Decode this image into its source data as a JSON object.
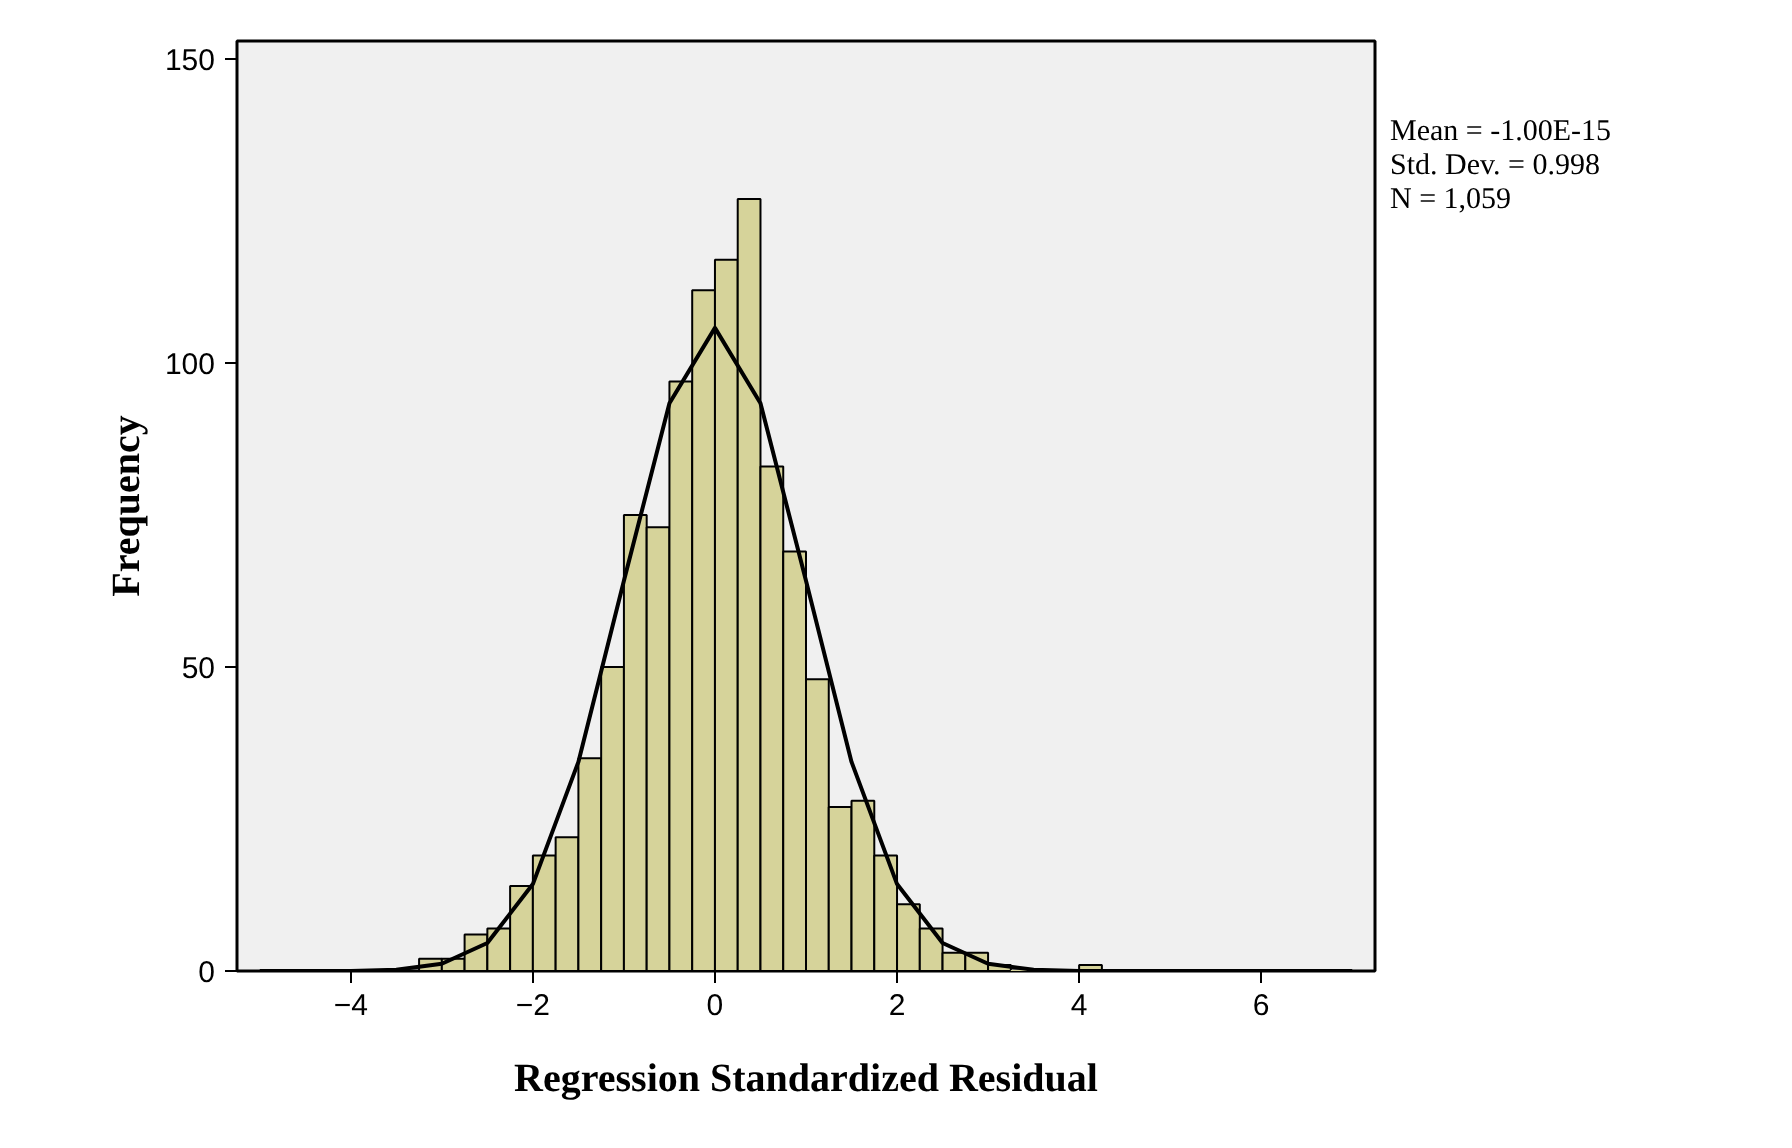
{
  "chart_data": {
    "type": "histogram",
    "xlabel": "Regression Standardized Residual",
    "ylabel": "Frequency",
    "annotations": [
      "Mean = -1.00E-15",
      "Std. Dev. = 0.998",
      "N = 1,059"
    ],
    "bins": [
      -3.25,
      -3.0,
      -2.75,
      -2.5,
      -2.25,
      -2.0,
      -1.75,
      -1.5,
      -1.25,
      -1.0,
      -0.75,
      -0.5,
      -0.25,
      0,
      0.25,
      0.5,
      0.75,
      1.0,
      1.25,
      1.5,
      1.75,
      2.0,
      2.25,
      2.5,
      2.75,
      3.0,
      3.25,
      3.5,
      3.75,
      4.0,
      4.25
    ],
    "values": [
      2,
      2,
      6,
      7,
      14,
      19,
      22,
      35,
      50,
      75,
      73,
      97,
      112,
      117,
      127,
      83,
      69,
      48,
      27,
      28,
      19,
      11,
      7,
      3,
      3,
      1,
      0,
      0,
      0,
      1
    ],
    "color": "#d6d39a",
    "series": [
      {
        "type": "line",
        "color": "#000000",
        "x": [
          -5,
          -4.5,
          -4,
          -3.5,
          -3,
          -2.5,
          -2,
          -1.5,
          -1,
          -0.5,
          0,
          0.5,
          1,
          1.5,
          2,
          2.5,
          3,
          3.5,
          4,
          4.5,
          5,
          5.5,
          6,
          6.5,
          7
        ],
        "values": [
          0,
          0,
          0,
          0.2,
          1.2,
          4.6,
          14.3,
          34.4,
          64.2,
          93.4,
          105.8,
          93.4,
          64.2,
          34.4,
          14.3,
          4.6,
          1.2,
          0.2,
          0,
          0,
          0,
          0,
          0,
          0,
          0
        ]
      }
    ],
    "xlim": [
      -5.25,
      7.25
    ],
    "ylim": [
      0,
      153
    ],
    "xticks": [
      -4,
      -2,
      0,
      2,
      4,
      6
    ],
    "yticks": [
      0,
      50,
      100,
      150
    ],
    "grid": false
  }
}
